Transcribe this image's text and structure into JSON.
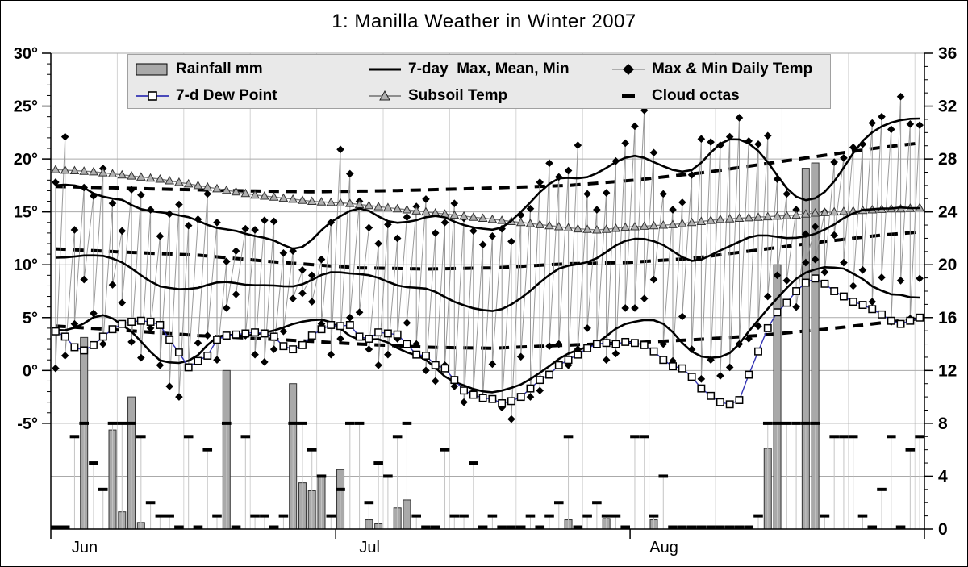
{
  "title": "1: Manilla Weather in Winter 2007",
  "legend": {
    "items": [
      {
        "label": "Rainfall mm",
        "swatch": "rainfall-bar"
      },
      {
        "label": "7-day  Max, Mean, Min",
        "swatch": "solid-line"
      },
      {
        "label": "Max & Min Daily Temp",
        "swatch": "diamond-line"
      },
      {
        "label": "7-d Dew Point",
        "swatch": "square-line"
      },
      {
        "label": "Subsoil Temp",
        "swatch": "triangle-line"
      },
      {
        "label": "Cloud octas",
        "swatch": "dash"
      }
    ]
  },
  "colors": {
    "dew_line": "#3333b3",
    "bar_fill": "#a9a9a9",
    "bar_stroke": "#333333",
    "subsoil_line": "#808080",
    "subsoil_marker": "#b0b0b0",
    "daily_link_line": "#999999",
    "grid": "#aaaaaa",
    "weekly_grid": "#d4d4d4",
    "stem": "#c4c4c4",
    "legend_bg": "#e9e9e9",
    "ink": "#000000"
  },
  "chart_data": {
    "type": "composite",
    "title": "1: Manilla Weather in Winter 2007",
    "x": {
      "months": [
        "Jun",
        "Jul",
        "Aug"
      ],
      "month_days": [
        30,
        31,
        31
      ],
      "total_days": 92
    },
    "axes": {
      "left": {
        "unit": "degC",
        "ticks": [
          {
            "v": 30,
            "label": "30°"
          },
          {
            "v": 25,
            "label": "25°"
          },
          {
            "v": 20,
            "label": "20°"
          },
          {
            "v": 15,
            "label": "15°"
          },
          {
            "v": 10,
            "label": "10°"
          },
          {
            "v": 5,
            "label": "5°"
          },
          {
            "v": 0,
            "label": "0°"
          },
          {
            "v": -5,
            "label": "-5°"
          }
        ],
        "minor_step": 1
      },
      "right": {
        "unit": "mm / octas",
        "min": 0,
        "max": 36,
        "major_step": 4,
        "minor_step": 1,
        "labels": [
          "36",
          "32",
          "28",
          "24",
          "20",
          "16",
          "12",
          "8",
          "4",
          "0"
        ]
      },
      "temp_to_right_scale": {
        "mul": 0.8,
        "add": 12
      }
    },
    "series": {
      "rainfall_mm": [
        0,
        0,
        0,
        14.5,
        0,
        0,
        7.5,
        1.3,
        10,
        0.5,
        0,
        0,
        0,
        0,
        0,
        0,
        0,
        0,
        12,
        0,
        0,
        0,
        0,
        0,
        0,
        11,
        3.5,
        2.9,
        4,
        0,
        4.5,
        0,
        0,
        0.7,
        0.4,
        0,
        1.6,
        2.2,
        0,
        0,
        0,
        0,
        0,
        0,
        0,
        0,
        0,
        0,
        0,
        0,
        0,
        0,
        0,
        0,
        0.7,
        0,
        0,
        0,
        0.8,
        0,
        0,
        0,
        0,
        0.7,
        0,
        0,
        0,
        0,
        0,
        0,
        0,
        0,
        0,
        0,
        0,
        6.1,
        20,
        0,
        0,
        27.3,
        27.7,
        0,
        0,
        0,
        0,
        0,
        0,
        0,
        0,
        0,
        0,
        0
      ],
      "max_daily_temp": [
        17.8,
        22.1,
        13.3,
        17.3,
        16.5,
        19.1,
        15.8,
        13.2,
        17.1,
        16.6,
        15.2,
        12.7,
        14.8,
        15.7,
        13.7,
        14.3,
        16.7,
        14.0,
        10.3,
        11.3,
        13.4,
        13.3,
        14.2,
        14.1,
        11.1,
        11.3,
        9.5,
        9.0,
        10.5,
        14.0,
        20.9,
        18.6,
        16.0,
        13.5,
        12.0,
        13.8,
        12.5,
        14.5,
        15.5,
        16.2,
        13.0,
        14.0,
        15.8,
        14.4,
        13.2,
        11.9,
        12.7,
        13.4,
        12.2,
        14.7,
        15.3,
        17.8,
        19.6,
        18.3,
        18.9,
        21.3,
        16.7,
        15.2,
        16.8,
        19.8,
        21.5,
        23.1,
        24.6,
        20.6,
        16.7,
        15.2,
        15.9,
        18.5,
        21.9,
        21.6,
        21.3,
        22.1,
        23.9,
        21.7,
        21.4,
        22.2,
        18.1,
        16.7,
        15.2,
        12.9,
        13.6,
        15.0,
        19.7,
        20.1,
        21.1,
        21.4,
        23.4,
        24.0,
        22.8,
        25.9,
        23.3,
        23.2
      ],
      "min_daily_temp": [
        0.2,
        1.4,
        4.4,
        8.6,
        5.4,
        2.5,
        8.1,
        6.4,
        2.7,
        1.2,
        4.0,
        0.5,
        -1.5,
        -2.5,
        0.3,
        2.6,
        3.3,
        1.0,
        5.9,
        7.2,
        3.3,
        1.5,
        0.8,
        2.0,
        3.7,
        6.8,
        7.3,
        6.5,
        4.4,
        1.5,
        3.0,
        5.0,
        5.5,
        2.0,
        0.5,
        1.5,
        3.0,
        4.5,
        2.5,
        0.0,
        -1.0,
        0.5,
        -1.5,
        -3.0,
        -2.0,
        -2.5,
        0.6,
        -3.5,
        -4.6,
        1.3,
        -2.5,
        -1.9,
        2.3,
        2.5,
        0.5,
        2.0,
        4.0,
        2.5,
        1.0,
        1.6,
        5.9,
        5.9,
        6.8,
        8.6,
        2.5,
        0.9,
        5.1,
        2.0,
        -0.8,
        1.0,
        -0.5,
        0.3,
        2.5,
        3.0,
        4.2,
        7.0,
        9.0,
        8.5,
        6.0,
        10.2,
        10.5,
        9.3,
        12.8,
        10.2,
        8.0,
        9.5,
        6.5,
        8.8,
        4.6,
        8.5,
        4.9,
        8.7
      ],
      "dew_point_7d": [
        3.7,
        3.2,
        2.2,
        1.9,
        2.4,
        3.2,
        3.9,
        4.4,
        4.6,
        4.7,
        4.6,
        4.3,
        2.9,
        1.7,
        0.3,
        0.9,
        1.4,
        2.9,
        3.3,
        3.4,
        3.5,
        3.6,
        3.5,
        3.2,
        2.3,
        2.0,
        2.4,
        3.3,
        3.9,
        4.3,
        4.2,
        4.3,
        3.2,
        3.0,
        3.6,
        3.5,
        3.4,
        2.5,
        1.5,
        1.4,
        0.5,
        0.2,
        -0.9,
        -1.9,
        -2.3,
        -2.6,
        -2.7,
        -3.1,
        -2.9,
        -2.5,
        -1.7,
        -0.9,
        -0.4,
        0.5,
        1.0,
        1.5,
        2.1,
        2.5,
        2.6,
        2.5,
        2.7,
        2.6,
        2.4,
        1.8,
        1.0,
        0.4,
        0.2,
        -0.6,
        -1.7,
        -2.4,
        -3.0,
        -3.2,
        -2.8,
        -0.4,
        1.8,
        4.0,
        5.5,
        6.4,
        7.5,
        8.3,
        8.7,
        8.2,
        7.5,
        7.0,
        6.5,
        6.2,
        5.8,
        5.3,
        4.7,
        4.4,
        4.7,
        5.0
      ],
      "subsoil_temp": [
        19.0,
        18.95,
        18.9,
        18.85,
        18.8,
        18.7,
        18.6,
        18.5,
        18.4,
        18.3,
        18.2,
        18.1,
        17.95,
        17.8,
        17.65,
        17.5,
        17.35,
        17.2,
        17.05,
        16.9,
        16.75,
        16.6,
        16.5,
        16.4,
        16.3,
        16.2,
        16.1,
        16.0,
        15.95,
        15.9,
        15.85,
        15.8,
        15.7,
        15.6,
        15.5,
        15.4,
        15.3,
        15.2,
        15.1,
        15.0,
        14.9,
        14.8,
        14.7,
        14.6,
        14.5,
        14.4,
        14.3,
        14.2,
        14.1,
        14.0,
        13.9,
        13.8,
        13.7,
        13.6,
        13.5,
        13.4,
        13.35,
        13.3,
        13.35,
        13.45,
        13.55,
        13.6,
        13.65,
        13.7,
        13.75,
        13.8,
        13.9,
        14.0,
        14.1,
        14.2,
        14.3,
        14.35,
        14.4,
        14.45,
        14.5,
        14.55,
        14.6,
        14.65,
        14.7,
        14.8,
        14.9,
        14.95,
        15.0,
        15.05,
        15.1,
        15.15,
        15.2,
        15.25,
        15.3,
        15.3,
        15.35,
        15.4
      ],
      "cloud_octas": [
        0,
        0,
        7,
        8,
        5,
        3,
        8,
        8,
        8,
        7,
        2,
        1,
        1,
        0,
        7,
        0,
        6,
        1,
        8,
        0,
        7,
        1,
        1,
        0,
        1,
        8,
        8,
        6,
        4,
        1,
        3,
        8,
        8,
        2,
        5,
        4,
        7,
        8,
        1,
        0,
        0,
        6,
        1,
        1,
        5,
        0,
        1,
        0,
        0,
        0,
        1,
        0,
        1,
        2,
        7,
        0,
        1,
        2,
        1,
        1,
        0,
        7,
        7,
        1,
        4,
        0,
        0,
        0,
        0,
        0,
        0,
        0,
        0,
        0,
        1,
        8,
        8,
        8,
        8,
        8,
        8,
        1,
        7,
        7,
        7,
        1,
        0,
        3,
        7,
        0,
        6,
        7
      ],
      "normal_max": {
        "days": [
          1,
          10,
          20,
          28,
          36,
          45,
          55,
          62,
          70,
          80,
          88,
          92
        ],
        "values": [
          17.4,
          17.2,
          17.0,
          16.9,
          17.0,
          17.2,
          17.5,
          18.0,
          18.8,
          20.1,
          21.1,
          21.5
        ]
      },
      "normal_mean": {
        "days": [
          1,
          8,
          16,
          25,
          33,
          40,
          47,
          55,
          61,
          68,
          75,
          82,
          88,
          92
        ],
        "values": [
          11.5,
          11.2,
          10.9,
          10.2,
          9.7,
          9.6,
          9.7,
          10.1,
          10.2,
          10.6,
          11.4,
          12.2,
          12.8,
          13.1
        ]
      },
      "normal_min": {
        "days": [
          1,
          8,
          16,
          25,
          33,
          40,
          47,
          55,
          61,
          68,
          75,
          82,
          88,
          92
        ],
        "values": [
          4.2,
          3.8,
          3.3,
          2.9,
          2.5,
          2.2,
          2.1,
          2.4,
          2.6,
          2.9,
          3.3,
          3.9,
          4.5,
          4.9
        ]
      },
      "smoothed_window_days": 7
    }
  }
}
